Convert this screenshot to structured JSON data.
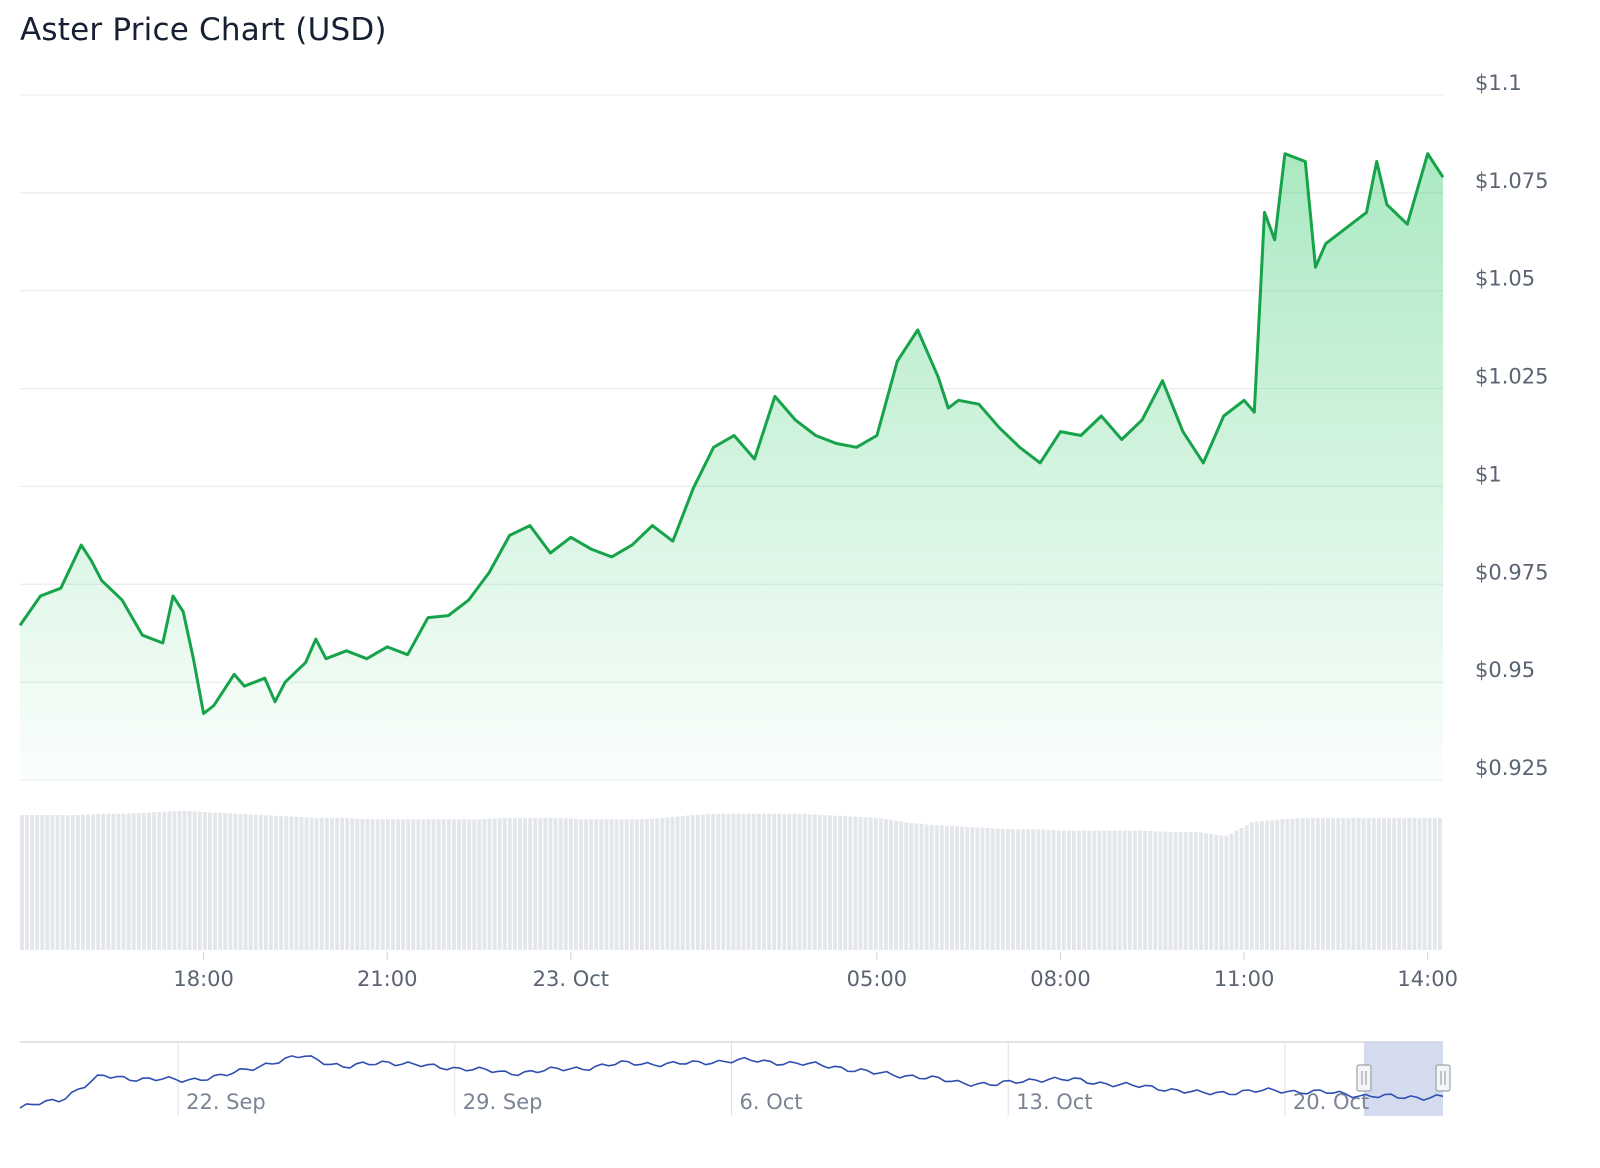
{
  "title": "Aster Price Chart (USD)",
  "colors": {
    "price_line": "#16a34a",
    "area_fill": "#22c55e",
    "volume_bar": "#e3e6ea",
    "grid": "#e6e8eb",
    "navigator_line": "#2f4fb0",
    "navigator_mask": "#c7cfe8"
  },
  "chart_data": [
    {
      "type": "area",
      "title": "Aster Price Chart (USD)",
      "xlabel": "",
      "ylabel": "",
      "x_range": [
        "2025-10-22 15:00",
        "2025-10-23 14:15"
      ],
      "ylim": [
        0.925,
        1.1
      ],
      "y_tick_labels": [
        "$1.1",
        "$1.075",
        "$1.05",
        "$1.025",
        "$1",
        "$0.975",
        "$0.95",
        "$0.925"
      ],
      "y_ticks": [
        1.1,
        1.075,
        1.05,
        1.025,
        1.0,
        0.975,
        0.95,
        0.925
      ],
      "x_tick_labels": [
        "18:00",
        "21:00",
        "23. Oct",
        "05:00",
        "08:00",
        "11:00",
        "14:00"
      ],
      "x_ticks": [
        "2025-10-22 18:00",
        "2025-10-22 21:00",
        "2025-10-23 00:00",
        "2025-10-23 05:00",
        "2025-10-23 08:00",
        "2025-10-23 11:00",
        "2025-10-23 14:00"
      ],
      "grid": true,
      "legend": "none",
      "series": [
        {
          "x": [
            "2025-10-22 15:00",
            "2025-10-22 15:20",
            "2025-10-22 15:40",
            "2025-10-22 16:00",
            "2025-10-22 16:10",
            "2025-10-22 16:20",
            "2025-10-22 16:40",
            "2025-10-22 17:00",
            "2025-10-22 17:20",
            "2025-10-22 17:30",
            "2025-10-22 17:40",
            "2025-10-22 17:50",
            "2025-10-22 18:00",
            "2025-10-22 18:10",
            "2025-10-22 18:30",
            "2025-10-22 18:40",
            "2025-10-22 19:00",
            "2025-10-22 19:10",
            "2025-10-22 19:20",
            "2025-10-22 19:40",
            "2025-10-22 19:50",
            "2025-10-22 20:00",
            "2025-10-22 20:20",
            "2025-10-22 20:40",
            "2025-10-22 21:00",
            "2025-10-22 21:20",
            "2025-10-22 21:40",
            "2025-10-22 22:00",
            "2025-10-22 22:20",
            "2025-10-22 22:40",
            "2025-10-22 23:00",
            "2025-10-22 23:20",
            "2025-10-22 23:40",
            "2025-10-23 00:00",
            "2025-10-23 00:20",
            "2025-10-23 00:40",
            "2025-10-23 01:00",
            "2025-10-23 01:20",
            "2025-10-23 01:40",
            "2025-10-23 02:00",
            "2025-10-23 02:20",
            "2025-10-23 02:40",
            "2025-10-23 03:00",
            "2025-10-23 03:20",
            "2025-10-23 03:40",
            "2025-10-23 04:00",
            "2025-10-23 04:20",
            "2025-10-23 04:40",
            "2025-10-23 05:00",
            "2025-10-23 05:20",
            "2025-10-23 05:40",
            "2025-10-23 06:00",
            "2025-10-23 06:10",
            "2025-10-23 06:20",
            "2025-10-23 06:40",
            "2025-10-23 07:00",
            "2025-10-23 07:20",
            "2025-10-23 07:40",
            "2025-10-23 08:00",
            "2025-10-23 08:20",
            "2025-10-23 08:40",
            "2025-10-23 09:00",
            "2025-10-23 09:20",
            "2025-10-23 09:40",
            "2025-10-23 10:00",
            "2025-10-23 10:20",
            "2025-10-23 10:40",
            "2025-10-23 11:00",
            "2025-10-23 11:10",
            "2025-10-23 11:20",
            "2025-10-23 11:30",
            "2025-10-23 11:40",
            "2025-10-23 12:00",
            "2025-10-23 12:10",
            "2025-10-23 12:20",
            "2025-10-23 12:40",
            "2025-10-23 13:00",
            "2025-10-23 13:10",
            "2025-10-23 13:20",
            "2025-10-23 13:40",
            "2025-10-23 14:00",
            "2025-10-23 14:15"
          ],
          "values": [
            0.9645,
            0.972,
            0.974,
            0.985,
            0.981,
            0.976,
            0.971,
            0.962,
            0.96,
            0.972,
            0.968,
            0.956,
            0.942,
            0.944,
            0.952,
            0.949,
            0.951,
            0.945,
            0.95,
            0.955,
            0.961,
            0.956,
            0.958,
            0.956,
            0.959,
            0.957,
            0.9665,
            0.967,
            0.971,
            0.978,
            0.9875,
            0.99,
            0.983,
            0.987,
            0.984,
            0.982,
            0.985,
            0.99,
            0.986,
            0.9995,
            1.01,
            1.013,
            1.007,
            1.023,
            1.017,
            1.013,
            1.011,
            1.01,
            1.013,
            1.032,
            1.04,
            1.028,
            1.02,
            1.022,
            1.021,
            1.015,
            1.01,
            1.006,
            1.014,
            1.013,
            1.018,
            1.012,
            1.017,
            1.027,
            1.014,
            1.006,
            1.018,
            1.022,
            1.019,
            1.07,
            1.063,
            1.085,
            1.083,
            1.056,
            1.062,
            1.066,
            1.07,
            1.083,
            1.072,
            1.067,
            1.085,
            1.079
          ]
        },
        {
          "name": "",
          "type": "bar",
          "values_relative": [
            0.95,
            0.95,
            0.95,
            0.96,
            0.96,
            0.97,
            0.98,
            0.97,
            0.96,
            0.95,
            0.94,
            0.93,
            0.93,
            0.92,
            0.92,
            0.92,
            0.92,
            0.92,
            0.93,
            0.93,
            0.93,
            0.92,
            0.92,
            0.92,
            0.93,
            0.95,
            0.96,
            0.96,
            0.96,
            0.96,
            0.95,
            0.94,
            0.93,
            0.9,
            0.88,
            0.87,
            0.86,
            0.85,
            0.85,
            0.84,
            0.84,
            0.84,
            0.84,
            0.83,
            0.83,
            0.8,
            0.9,
            0.92,
            0.93,
            0.93,
            0.93,
            0.93,
            0.93,
            0.93
          ]
        }
      ]
    },
    {
      "type": "line",
      "title": "",
      "x_tick_labels": [
        "22. Sep",
        "29. Sep",
        "6. Oct",
        "13. Oct",
        "20. Oct"
      ],
      "x_ticks": [
        "2025-09-22",
        "2025-09-29",
        "2025-10-06",
        "2025-10-13",
        "2025-10-20"
      ],
      "selected_range": [
        "2025-10-22",
        "2025-10-23"
      ],
      "series": [
        {
          "x": [
            "2025-09-18",
            "2025-09-19",
            "2025-09-20",
            "2025-09-21",
            "2025-09-22",
            "2025-09-23",
            "2025-09-24",
            "2025-09-25",
            "2025-09-26",
            "2025-09-27",
            "2025-09-28",
            "2025-09-29",
            "2025-09-30",
            "2025-10-01",
            "2025-10-02",
            "2025-10-03",
            "2025-10-04",
            "2025-10-05",
            "2025-10-06",
            "2025-10-07",
            "2025-10-08",
            "2025-10-09",
            "2025-10-10",
            "2025-10-11",
            "2025-10-12",
            "2025-10-13",
            "2025-10-14",
            "2025-10-15",
            "2025-10-16",
            "2025-10-17",
            "2025-10-18",
            "2025-10-19",
            "2025-10-20",
            "2025-10-21",
            "2025-10-22",
            "2025-10-23"
          ],
          "values_relative": [
            0.0,
            0.15,
            0.55,
            0.5,
            0.48,
            0.55,
            0.75,
            0.9,
            0.7,
            0.8,
            0.72,
            0.68,
            0.6,
            0.65,
            0.7,
            0.78,
            0.75,
            0.8,
            0.82,
            0.77,
            0.72,
            0.6,
            0.55,
            0.45,
            0.4,
            0.5,
            0.48,
            0.4,
            0.35,
            0.25,
            0.28,
            0.3,
            0.27,
            0.22,
            0.18,
            0.2
          ]
        }
      ]
    }
  ]
}
